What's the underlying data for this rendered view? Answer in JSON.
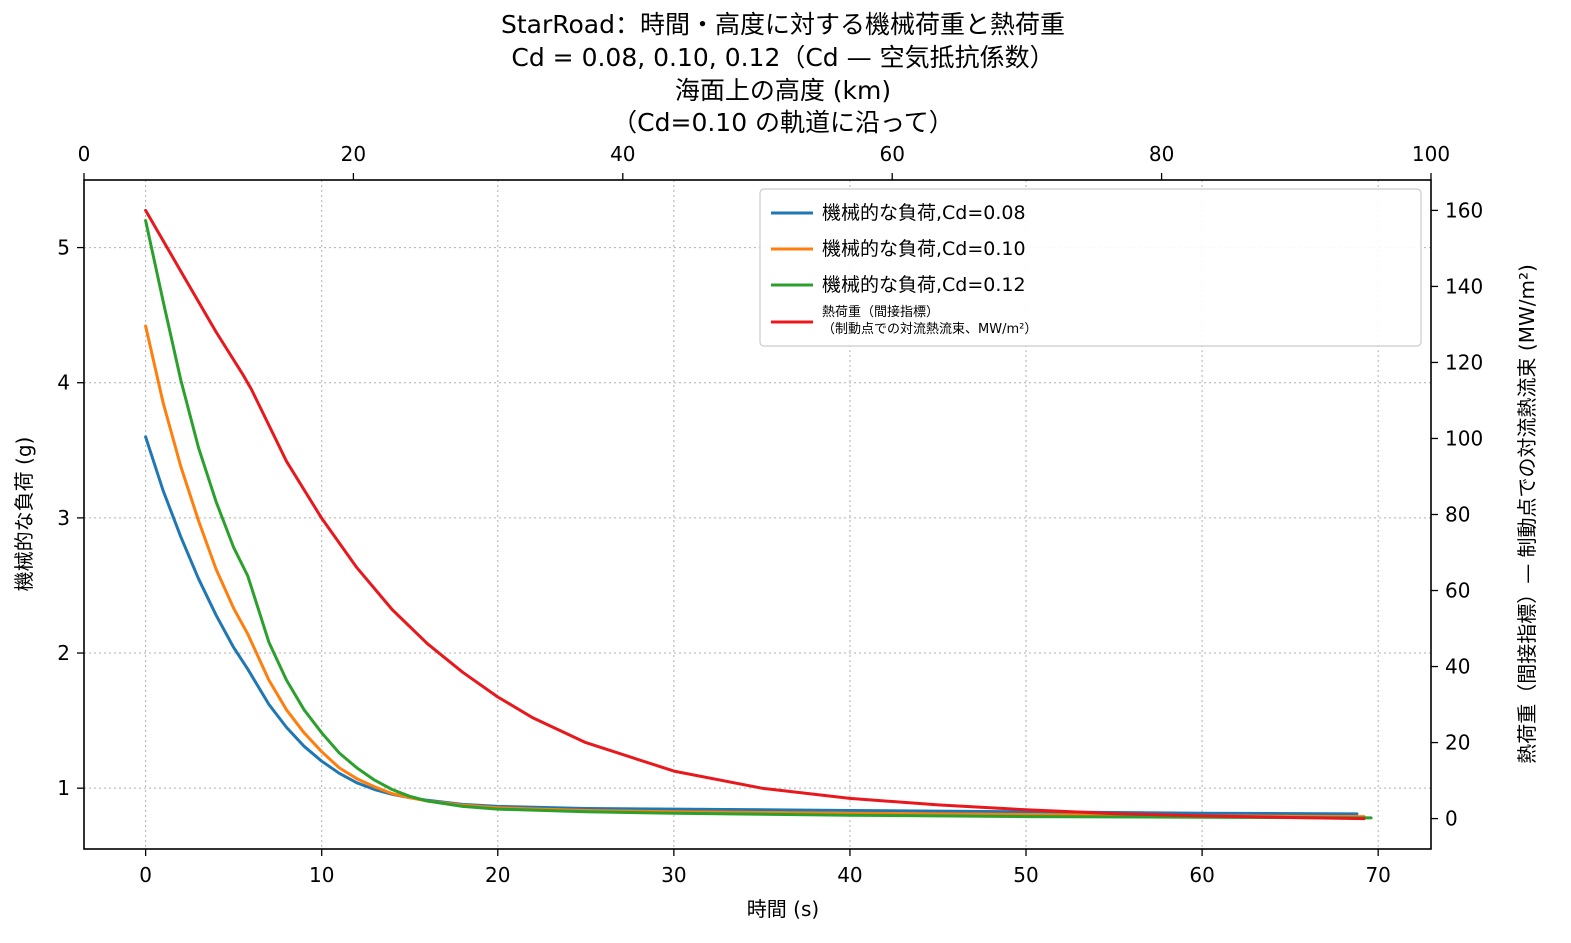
{
  "chart_data": {
    "type": "line",
    "title": {
      "line1": "StarRoad：時間・高度に対する機械荷重と熱荷重",
      "line2": "Cd = 0.08, 0.10, 0.12（Cd — 空気抵抗係数）"
    },
    "top_axis": {
      "label_line1": "海面上の高度 (km)",
      "label_line2": "（Cd=0.10 の軌道に沿って）",
      "range": [
        0,
        100
      ],
      "ticks": [
        0,
        20,
        40,
        60,
        80,
        100
      ]
    },
    "xlabel": "時間 (s)",
    "xlim": [
      -3.5,
      73
    ],
    "xticks": [
      0,
      10,
      20,
      30,
      40,
      50,
      60,
      70
    ],
    "ylabel_left": "機械的な負荷 (g)",
    "ylim_left": [
      0.55,
      5.5
    ],
    "yticks_left": [
      1,
      2,
      3,
      4,
      5
    ],
    "ylabel_right": "熱荷重（間接指標）— 制動点での対流熱流束 (MW/m²)",
    "ylim_right": [
      -8,
      168
    ],
    "yticks_right": [
      0,
      20,
      40,
      60,
      80,
      100,
      120,
      140,
      160
    ],
    "grid": true,
    "legend_position": "top-right",
    "series": [
      {
        "name": "機械的な負荷,Cd=0.08",
        "color": "#1f77b4",
        "axis": "left",
        "x": [
          0,
          1,
          2,
          3,
          4,
          5,
          5.8,
          7,
          8,
          9,
          10,
          11,
          12,
          13,
          14,
          15,
          16,
          18,
          20,
          25,
          30,
          40,
          50,
          60,
          68.8
        ],
        "y": [
          3.6,
          3.2,
          2.86,
          2.55,
          2.28,
          2.04,
          1.88,
          1.62,
          1.45,
          1.31,
          1.2,
          1.11,
          1.04,
          0.99,
          0.955,
          0.93,
          0.91,
          0.88,
          0.865,
          0.85,
          0.845,
          0.835,
          0.825,
          0.815,
          0.81
        ]
      },
      {
        "name": "機械的な負荷,Cd=0.10",
        "color": "#ff7f0e",
        "axis": "left",
        "x": [
          0,
          1,
          2,
          3,
          4,
          5,
          5.8,
          7,
          8,
          9,
          10,
          11,
          12,
          13,
          14,
          15,
          16,
          18,
          20,
          25,
          30,
          40,
          50,
          60,
          69.2
        ],
        "y": [
          4.42,
          3.85,
          3.38,
          2.98,
          2.62,
          2.33,
          2.14,
          1.8,
          1.58,
          1.41,
          1.27,
          1.15,
          1.07,
          1.01,
          0.96,
          0.93,
          0.905,
          0.875,
          0.855,
          0.835,
          0.825,
          0.815,
          0.805,
          0.795,
          0.79
        ]
      },
      {
        "name": "機械的な負荷,Cd=0.12",
        "color": "#2ca02c",
        "axis": "left",
        "x": [
          0,
          1,
          2,
          3,
          4,
          5,
          5.8,
          7,
          8,
          9,
          10,
          11,
          12,
          13,
          14,
          15,
          16,
          18,
          20,
          25,
          30,
          40,
          50,
          60,
          69.6
        ],
        "y": [
          5.2,
          4.6,
          4.02,
          3.52,
          3.12,
          2.78,
          2.57,
          2.08,
          1.8,
          1.58,
          1.41,
          1.26,
          1.15,
          1.06,
          0.99,
          0.94,
          0.905,
          0.865,
          0.845,
          0.825,
          0.815,
          0.8,
          0.79,
          0.785,
          0.78
        ]
      },
      {
        "name": "熱荷重（間接指標）\n（制動点での対流熱流束、MW/m²）",
        "color": "#e8181c",
        "axis": "right",
        "x": [
          0,
          2,
          4,
          5.5,
          6,
          8,
          10,
          12,
          14,
          16,
          18,
          20,
          22,
          25,
          30,
          35,
          40,
          45,
          50,
          55,
          60,
          65,
          69.2
        ],
        "y": [
          160,
          144,
          128,
          117,
          113,
          94,
          79,
          66,
          55,
          46,
          38.5,
          32,
          26.5,
          20,
          12.5,
          8,
          5.3,
          3.6,
          2.3,
          1.3,
          0.7,
          0.3,
          0
        ]
      }
    ]
  }
}
